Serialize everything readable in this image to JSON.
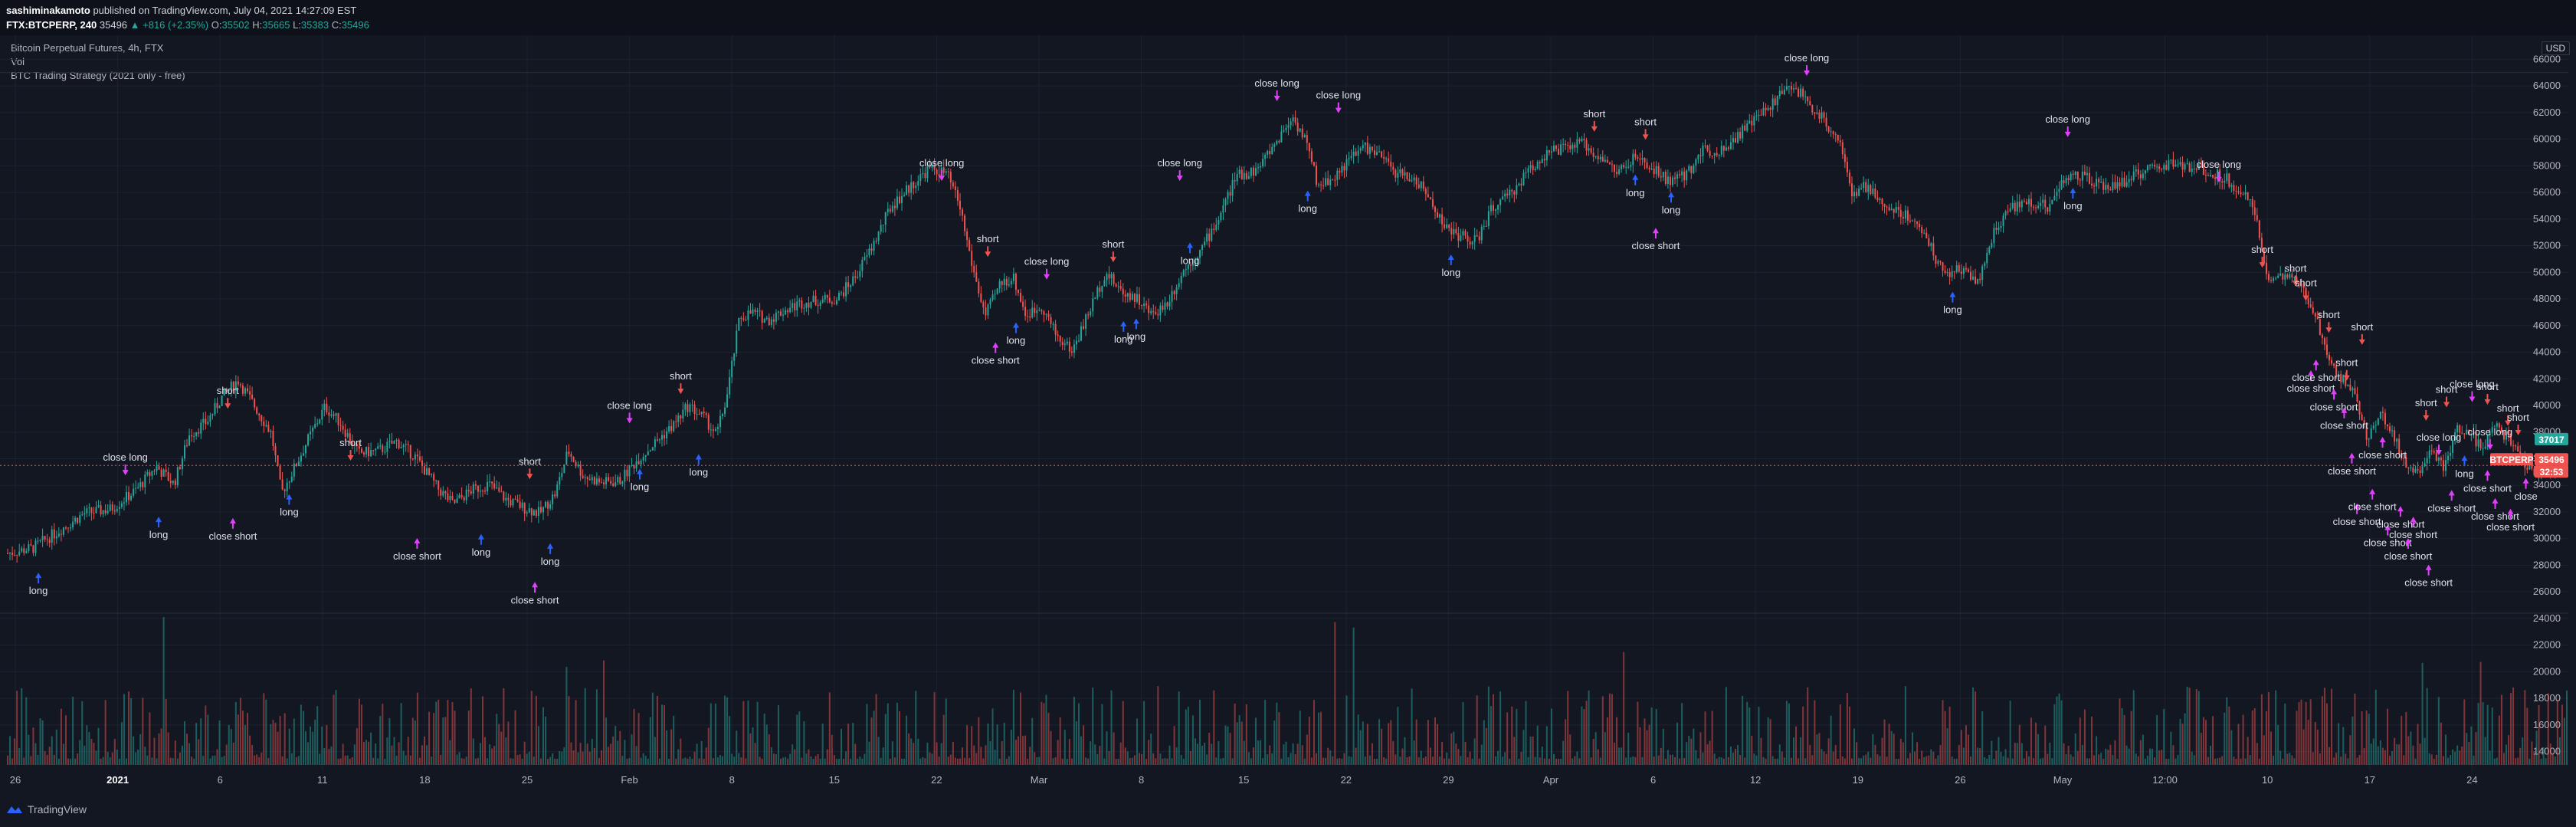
{
  "header": {
    "author": "sashiminakamoto",
    "published_text": "published on TradingView.com, July 04, 2021 14:27:09 EST",
    "symbol": "FTX:BTCPERP, 240",
    "last": "35496",
    "change": "▲ +816 (+2.35%)",
    "o_label": "O:",
    "o_value": "35502",
    "h_label": "H:",
    "h_value": "35665",
    "l_label": "L:",
    "l_value": "35383",
    "c_label": "C:",
    "c_value": "35496"
  },
  "legend": {
    "title": "Bitcoin Perpetual Futures, 4h, FTX",
    "vol": "Vol",
    "strategy": "BTC Trading Strategy (2021 only - free)"
  },
  "currency": "USD",
  "footer": {
    "brand": "TradingView"
  },
  "colors": {
    "background": "#131722",
    "up": "#26a69a",
    "down": "#ef5350",
    "long_arrow": "#2962ff",
    "short_arrow": "#ef5350",
    "close_arrow": "#e040fb",
    "grid": "#1e2230"
  },
  "chart_data": {
    "type": "candlestick",
    "title": "Bitcoin Perpetual Futures, 4h, FTX",
    "y_axis": {
      "min": 13000,
      "max": 67000,
      "price_ticks": [
        28000,
        30000,
        32000,
        34000,
        36000,
        38000,
        40000,
        42000,
        44000,
        46000,
        48000,
        50000,
        52000,
        54000,
        56000,
        58000,
        60000,
        62000,
        64000,
        66000
      ],
      "volume_ticks": [
        14000,
        16000,
        18000,
        20000,
        22000,
        24000,
        26000
      ]
    },
    "x_axis": {
      "ticks": [
        "26",
        "2021",
        "6",
        "11",
        "18",
        "25",
        "Feb",
        "8",
        "15",
        "22",
        "Mar",
        "8",
        "15",
        "22",
        "29",
        "Apr",
        "6",
        "12",
        "19",
        "26",
        "May",
        "12:00",
        "10",
        "17",
        "24"
      ]
    },
    "price_badges": [
      {
        "label": "37017",
        "value": 37017,
        "color": "#26a69a"
      },
      {
        "label": "BTCPERP",
        "value": 35496,
        "color": "#ef5350"
      },
      {
        "label": "35496",
        "value": 35496,
        "color": "#ef5350"
      },
      {
        "label": "32:53",
        "value": 34900,
        "color": "#ef5350"
      }
    ],
    "price_path": [
      {
        "t": 0.0,
        "p": 28900
      },
      {
        "t": 0.01,
        "p": 29300
      },
      {
        "t": 0.02,
        "p": 30600
      },
      {
        "t": 0.03,
        "p": 31900
      },
      {
        "t": 0.04,
        "p": 32200
      },
      {
        "t": 0.05,
        "p": 33600
      },
      {
        "t": 0.058,
        "p": 35400
      },
      {
        "t": 0.065,
        "p": 34100
      },
      {
        "t": 0.071,
        "p": 37800
      },
      {
        "t": 0.078,
        "p": 38800
      },
      {
        "t": 0.084,
        "p": 40700
      },
      {
        "t": 0.09,
        "p": 41900
      },
      {
        "t": 0.097,
        "p": 39800
      },
      {
        "t": 0.103,
        "p": 37900
      },
      {
        "t": 0.107,
        "p": 33400
      },
      {
        "t": 0.112,
        "p": 35300
      },
      {
        "t": 0.117,
        "p": 37300
      },
      {
        "t": 0.124,
        "p": 39900
      },
      {
        "t": 0.13,
        "p": 38700
      },
      {
        "t": 0.137,
        "p": 36400
      },
      {
        "t": 0.145,
        "p": 36600
      },
      {
        "t": 0.152,
        "p": 37300
      },
      {
        "t": 0.159,
        "p": 36200
      },
      {
        "t": 0.168,
        "p": 33800
      },
      {
        "t": 0.174,
        "p": 32600
      },
      {
        "t": 0.181,
        "p": 33600
      },
      {
        "t": 0.188,
        "p": 34100
      },
      {
        "t": 0.195,
        "p": 32900
      },
      {
        "t": 0.202,
        "p": 32300
      },
      {
        "t": 0.208,
        "p": 31900
      },
      {
        "t": 0.214,
        "p": 33400
      },
      {
        "t": 0.219,
        "p": 36600
      },
      {
        "t": 0.225,
        "p": 34700
      },
      {
        "t": 0.232,
        "p": 34200
      },
      {
        "t": 0.239,
        "p": 34300
      },
      {
        "t": 0.246,
        "p": 35900
      },
      {
        "t": 0.253,
        "p": 37200
      },
      {
        "t": 0.26,
        "p": 38500
      },
      {
        "t": 0.266,
        "p": 40000
      },
      {
        "t": 0.272,
        "p": 39100
      },
      {
        "t": 0.277,
        "p": 37800
      },
      {
        "t": 0.281,
        "p": 40600
      },
      {
        "t": 0.286,
        "p": 46600
      },
      {
        "t": 0.291,
        "p": 47000
      },
      {
        "t": 0.297,
        "p": 46400
      },
      {
        "t": 0.303,
        "p": 47100
      },
      {
        "t": 0.31,
        "p": 47700
      },
      {
        "t": 0.317,
        "p": 47900
      },
      {
        "t": 0.324,
        "p": 48000
      },
      {
        "t": 0.331,
        "p": 49600
      },
      {
        "t": 0.338,
        "p": 52000
      },
      {
        "t": 0.345,
        "p": 54900
      },
      {
        "t": 0.352,
        "p": 56300
      },
      {
        "t": 0.36,
        "p": 57800
      },
      {
        "t": 0.367,
        "p": 57400
      },
      {
        "t": 0.372,
        "p": 55000
      },
      {
        "t": 0.377,
        "p": 50400
      },
      {
        "t": 0.382,
        "p": 46700
      },
      {
        "t": 0.388,
        "p": 49200
      },
      {
        "t": 0.393,
        "p": 49600
      },
      {
        "t": 0.398,
        "p": 46700
      },
      {
        "t": 0.404,
        "p": 47500
      },
      {
        "t": 0.41,
        "p": 45200
      },
      {
        "t": 0.416,
        "p": 44100
      },
      {
        "t": 0.422,
        "p": 46800
      },
      {
        "t": 0.429,
        "p": 50000
      },
      {
        "t": 0.435,
        "p": 48600
      },
      {
        "t": 0.441,
        "p": 48100
      },
      {
        "t": 0.447,
        "p": 46800
      },
      {
        "t": 0.453,
        "p": 47700
      },
      {
        "t": 0.46,
        "p": 50300
      },
      {
        "t": 0.466,
        "p": 51600
      },
      {
        "t": 0.473,
        "p": 54000
      },
      {
        "t": 0.48,
        "p": 57200
      },
      {
        "t": 0.488,
        "p": 57700
      },
      {
        "t": 0.495,
        "p": 59600
      },
      {
        "t": 0.502,
        "p": 61700
      },
      {
        "t": 0.507,
        "p": 60000
      },
      {
        "t": 0.512,
        "p": 56500
      },
      {
        "t": 0.518,
        "p": 57100
      },
      {
        "t": 0.524,
        "p": 58400
      },
      {
        "t": 0.53,
        "p": 59500
      },
      {
        "t": 0.537,
        "p": 58600
      },
      {
        "t": 0.543,
        "p": 57400
      },
      {
        "t": 0.55,
        "p": 57000
      },
      {
        "t": 0.556,
        "p": 55400
      },
      {
        "t": 0.562,
        "p": 53300
      },
      {
        "t": 0.568,
        "p": 52700
      },
      {
        "t": 0.574,
        "p": 52300
      },
      {
        "t": 0.58,
        "p": 54800
      },
      {
        "t": 0.587,
        "p": 55800
      },
      {
        "t": 0.594,
        "p": 57600
      },
      {
        "t": 0.601,
        "p": 58900
      },
      {
        "t": 0.608,
        "p": 59300
      },
      {
        "t": 0.615,
        "p": 59700
      },
      {
        "t": 0.622,
        "p": 58700
      },
      {
        "t": 0.629,
        "p": 57500
      },
      {
        "t": 0.636,
        "p": 58600
      },
      {
        "t": 0.643,
        "p": 57700
      },
      {
        "t": 0.65,
        "p": 56800
      },
      {
        "t": 0.656,
        "p": 57300
      },
      {
        "t": 0.662,
        "p": 59200
      },
      {
        "t": 0.669,
        "p": 59100
      },
      {
        "t": 0.676,
        "p": 60300
      },
      {
        "t": 0.683,
        "p": 61500
      },
      {
        "t": 0.69,
        "p": 62800
      },
      {
        "t": 0.697,
        "p": 64100
      },
      {
        "t": 0.703,
        "p": 62900
      },
      {
        "t": 0.71,
        "p": 61300
      },
      {
        "t": 0.716,
        "p": 60000
      },
      {
        "t": 0.721,
        "p": 55500
      },
      {
        "t": 0.726,
        "p": 56500
      },
      {
        "t": 0.733,
        "p": 55000
      },
      {
        "t": 0.74,
        "p": 54500
      },
      {
        "t": 0.747,
        "p": 53600
      },
      {
        "t": 0.753,
        "p": 51200
      },
      {
        "t": 0.758,
        "p": 49800
      },
      {
        "t": 0.764,
        "p": 50300
      },
      {
        "t": 0.77,
        "p": 49300
      },
      {
        "t": 0.776,
        "p": 52900
      },
      {
        "t": 0.783,
        "p": 54900
      },
      {
        "t": 0.79,
        "p": 55300
      },
      {
        "t": 0.797,
        "p": 54900
      },
      {
        "t": 0.804,
        "p": 57100
      },
      {
        "t": 0.811,
        "p": 57200
      },
      {
        "t": 0.818,
        "p": 56400
      },
      {
        "t": 0.825,
        "p": 56600
      },
      {
        "t": 0.832,
        "p": 57400
      },
      {
        "t": 0.839,
        "p": 57800
      },
      {
        "t": 0.846,
        "p": 58200
      },
      {
        "t": 0.853,
        "p": 57800
      },
      {
        "t": 0.86,
        "p": 57600
      },
      {
        "t": 0.867,
        "p": 57000
      },
      {
        "t": 0.873,
        "p": 56100
      },
      {
        "t": 0.878,
        "p": 54500
      },
      {
        "t": 0.883,
        "p": 49700
      },
      {
        "t": 0.889,
        "p": 49600
      },
      {
        "t": 0.895,
        "p": 49200
      },
      {
        "t": 0.901,
        "p": 47200
      },
      {
        "t": 0.907,
        "p": 43700
      },
      {
        "t": 0.912,
        "p": 41900
      },
      {
        "t": 0.917,
        "p": 41400
      },
      {
        "t": 0.922,
        "p": 37300
      },
      {
        "t": 0.927,
        "p": 39600
      },
      {
        "t": 0.932,
        "p": 37800
      },
      {
        "t": 0.937,
        "p": 35600
      },
      {
        "t": 0.942,
        "p": 34900
      },
      {
        "t": 0.947,
        "p": 36900
      },
      {
        "t": 0.952,
        "p": 35200
      },
      {
        "t": 0.957,
        "p": 38300
      },
      {
        "t": 0.962,
        "p": 38000
      },
      {
        "t": 0.967,
        "p": 36700
      },
      {
        "t": 0.972,
        "p": 38400
      },
      {
        "t": 0.977,
        "p": 37600
      },
      {
        "t": 0.982,
        "p": 36200
      },
      {
        "t": 0.987,
        "p": 34700
      },
      {
        "t": 0.992,
        "p": 35300
      },
      {
        "t": 1.0,
        "p": 35500
      }
    ],
    "signals": [
      {
        "t": 0.012,
        "p": 27500,
        "label": "long",
        "kind": "long"
      },
      {
        "t": 0.046,
        "p": 34700,
        "label": "close long",
        "kind": "close_long"
      },
      {
        "t": 0.059,
        "p": 31700,
        "label": "long",
        "kind": "long"
      },
      {
        "t": 0.086,
        "p": 39700,
        "label": "short",
        "kind": "short"
      },
      {
        "t": 0.088,
        "p": 31600,
        "label": "close short",
        "kind": "close_short"
      },
      {
        "t": 0.11,
        "p": 33400,
        "label": "long",
        "kind": "long"
      },
      {
        "t": 0.134,
        "p": 35800,
        "label": "short",
        "kind": "short"
      },
      {
        "t": 0.16,
        "p": 30100,
        "label": "close short",
        "kind": "close_short"
      },
      {
        "t": 0.185,
        "p": 30400,
        "label": "long",
        "kind": "long"
      },
      {
        "t": 0.204,
        "p": 34400,
        "label": "short",
        "kind": "short"
      },
      {
        "t": 0.206,
        "p": 26800,
        "label": "close short",
        "kind": "close_short"
      },
      {
        "t": 0.212,
        "p": 29700,
        "label": "long",
        "kind": "long"
      },
      {
        "t": 0.243,
        "p": 38600,
        "label": "close long",
        "kind": "close_long"
      },
      {
        "t": 0.247,
        "p": 35300,
        "label": "long",
        "kind": "long"
      },
      {
        "t": 0.263,
        "p": 40800,
        "label": "short",
        "kind": "short"
      },
      {
        "t": 0.27,
        "p": 36400,
        "label": "long",
        "kind": "long"
      },
      {
        "t": 0.365,
        "p": 56800,
        "label": "close long",
        "kind": "close_long"
      },
      {
        "t": 0.383,
        "p": 51100,
        "label": "short",
        "kind": "short"
      },
      {
        "t": 0.386,
        "p": 44800,
        "label": "close short",
        "kind": "close_short"
      },
      {
        "t": 0.394,
        "p": 46300,
        "label": "long",
        "kind": "long"
      },
      {
        "t": 0.406,
        "p": 49400,
        "label": "close long",
        "kind": "close_long"
      },
      {
        "t": 0.432,
        "p": 50700,
        "label": "short",
        "kind": "short"
      },
      {
        "t": 0.436,
        "p": 46400,
        "label": "long",
        "kind": "long"
      },
      {
        "t": 0.441,
        "p": 46600,
        "label": "long",
        "kind": "long"
      },
      {
        "t": 0.458,
        "p": 56800,
        "label": "close long",
        "kind": "close_long"
      },
      {
        "t": 0.462,
        "p": 52300,
        "label": "long",
        "kind": "long"
      },
      {
        "t": 0.496,
        "p": 62800,
        "label": "close long",
        "kind": "close_long"
      },
      {
        "t": 0.508,
        "p": 56200,
        "label": "long",
        "kind": "long"
      },
      {
        "t": 0.52,
        "p": 61900,
        "label": "close long",
        "kind": "close_long"
      },
      {
        "t": 0.564,
        "p": 51400,
        "label": "long",
        "kind": "long"
      },
      {
        "t": 0.62,
        "p": 60500,
        "label": "short",
        "kind": "short"
      },
      {
        "t": 0.636,
        "p": 57400,
        "label": "long",
        "kind": "long"
      },
      {
        "t": 0.64,
        "p": 59900,
        "label": "short",
        "kind": "short"
      },
      {
        "t": 0.644,
        "p": 53400,
        "label": "close short",
        "kind": "close_short"
      },
      {
        "t": 0.65,
        "p": 56100,
        "label": "long",
        "kind": "long"
      },
      {
        "t": 0.703,
        "p": 64700,
        "label": "close long",
        "kind": "close_long"
      },
      {
        "t": 0.76,
        "p": 48600,
        "label": "long",
        "kind": "long"
      },
      {
        "t": 0.805,
        "p": 60100,
        "label": "close long",
        "kind": "close_long"
      },
      {
        "t": 0.807,
        "p": 56400,
        "label": "long",
        "kind": "long"
      },
      {
        "t": 0.864,
        "p": 56700,
        "label": "close long",
        "kind": "close_long"
      },
      {
        "t": 0.881,
        "p": 50300,
        "label": "short",
        "kind": "short"
      },
      {
        "t": 0.894,
        "p": 48900,
        "label": "short",
        "kind": "short"
      },
      {
        "t": 0.898,
        "p": 47800,
        "label": "short",
        "kind": "short"
      },
      {
        "t": 0.9,
        "p": 42700,
        "label": "close short",
        "kind": "close_short"
      },
      {
        "t": 0.902,
        "p": 43500,
        "label": "close short",
        "kind": "close_short"
      },
      {
        "t": 0.907,
        "p": 45400,
        "label": "short",
        "kind": "short"
      },
      {
        "t": 0.909,
        "p": 41300,
        "label": "close short",
        "kind": "close_short"
      },
      {
        "t": 0.913,
        "p": 39900,
        "label": "close short",
        "kind": "close_short"
      },
      {
        "t": 0.916,
        "p": 36500,
        "label": "close short",
        "kind": "close_short"
      },
      {
        "t": 0.914,
        "p": 41800,
        "label": "short",
        "kind": "short"
      },
      {
        "t": 0.92,
        "p": 44500,
        "label": "short",
        "kind": "short"
      },
      {
        "t": 0.918,
        "p": 32700,
        "label": "close short",
        "kind": "close_short"
      },
      {
        "t": 0.924,
        "p": 33800,
        "label": "close short",
        "kind": "close_short"
      },
      {
        "t": 0.928,
        "p": 37700,
        "label": "close short",
        "kind": "close_short"
      },
      {
        "t": 0.93,
        "p": 31100,
        "label": "close short",
        "kind": "close_short"
      },
      {
        "t": 0.935,
        "p": 32500,
        "label": "close short",
        "kind": "close_short"
      },
      {
        "t": 0.938,
        "p": 30100,
        "label": "close short",
        "kind": "close_short"
      },
      {
        "t": 0.94,
        "p": 31700,
        "label": "close short",
        "kind": "close_short"
      },
      {
        "t": 0.945,
        "p": 38800,
        "label": "short",
        "kind": "short"
      },
      {
        "t": 0.946,
        "p": 28100,
        "label": "close short",
        "kind": "close_short"
      },
      {
        "t": 0.95,
        "p": 36200,
        "label": "close long",
        "kind": "close_long"
      },
      {
        "t": 0.953,
        "p": 39800,
        "label": "short",
        "kind": "short"
      },
      {
        "t": 0.955,
        "p": 33700,
        "label": "close short",
        "kind": "close_short"
      },
      {
        "t": 0.96,
        "p": 36300,
        "label": "long",
        "kind": "long"
      },
      {
        "t": 0.963,
        "p": 40200,
        "label": "close long",
        "kind": "close_long"
      },
      {
        "t": 0.969,
        "p": 40000,
        "label": "short",
        "kind": "short"
      },
      {
        "t": 0.969,
        "p": 35200,
        "label": "close short",
        "kind": "close_short"
      },
      {
        "t": 0.97,
        "p": 36600,
        "label": "close long",
        "kind": "close_long"
      },
      {
        "t": 0.972,
        "p": 33100,
        "label": "close short",
        "kind": "close_short"
      },
      {
        "t": 0.977,
        "p": 38400,
        "label": "short",
        "kind": "short"
      },
      {
        "t": 0.978,
        "p": 32300,
        "label": "close short",
        "kind": "close_short"
      },
      {
        "t": 0.981,
        "p": 37700,
        "label": "short",
        "kind": "short"
      },
      {
        "t": 0.984,
        "p": 34600,
        "label": "close",
        "kind": "close_short"
      }
    ]
  }
}
